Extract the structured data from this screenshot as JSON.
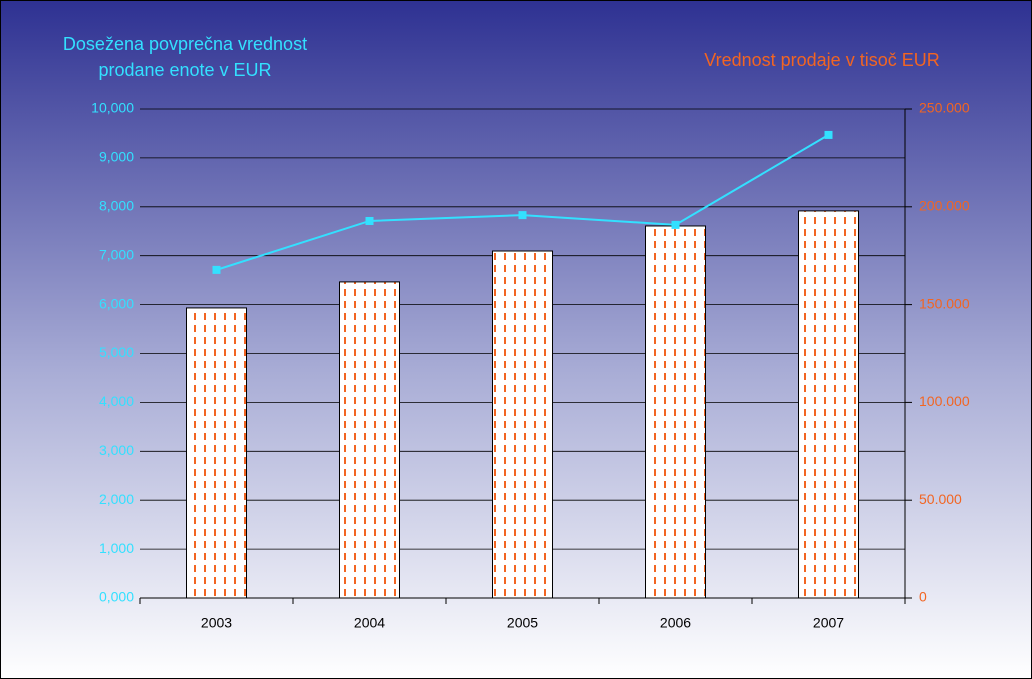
{
  "chart_data": {
    "type": "bar_line",
    "y_label": [
      "Dosežena povprečna vrednost",
      "prodane enote v EUR"
    ],
    "y2_label": "Vrednost prodaje v tisoč EUR",
    "categories": [
      "2003",
      "2004",
      "2005",
      "2006",
      "2007"
    ],
    "series": [
      {
        "name": "Vrednost prodaje",
        "type": "bar",
        "axis": "y2",
        "color": "#f26522",
        "values": [
          148300,
          161600,
          177400,
          190200,
          197900
        ]
      },
      {
        "name": "Povprečna vrednost",
        "type": "line",
        "axis": "y",
        "color": "#33e0ff",
        "values": [
          6710,
          7710,
          7830,
          7630,
          9470
        ]
      }
    ],
    "ylim": [
      0,
      10000
    ],
    "yticks": [
      {
        "value": 0,
        "label": "0,000"
      },
      {
        "value": 1000,
        "label": "1,000"
      },
      {
        "value": 2000,
        "label": "2,000"
      },
      {
        "value": 3000,
        "label": "3,000"
      },
      {
        "value": 4000,
        "label": "4,000"
      },
      {
        "value": 5000,
        "label": "5,000"
      },
      {
        "value": 6000,
        "label": "6,000"
      },
      {
        "value": 7000,
        "label": "7,000"
      },
      {
        "value": 8000,
        "label": "8,000"
      },
      {
        "value": 9000,
        "label": "9,000"
      },
      {
        "value": 10000,
        "label": "10,000"
      }
    ],
    "y2lim": [
      0,
      250000
    ],
    "y2ticks": [
      0,
      {
        "value": 50000,
        "label": "50.000"
      },
      {
        "value": 100000,
        "label": "100.000"
      },
      {
        "value": 150000,
        "label": "150.000"
      },
      {
        "value": 200000,
        "label": "200.000"
      },
      {
        "value": 250000,
        "label": "250.000"
      }
    ],
    "grid": true
  }
}
